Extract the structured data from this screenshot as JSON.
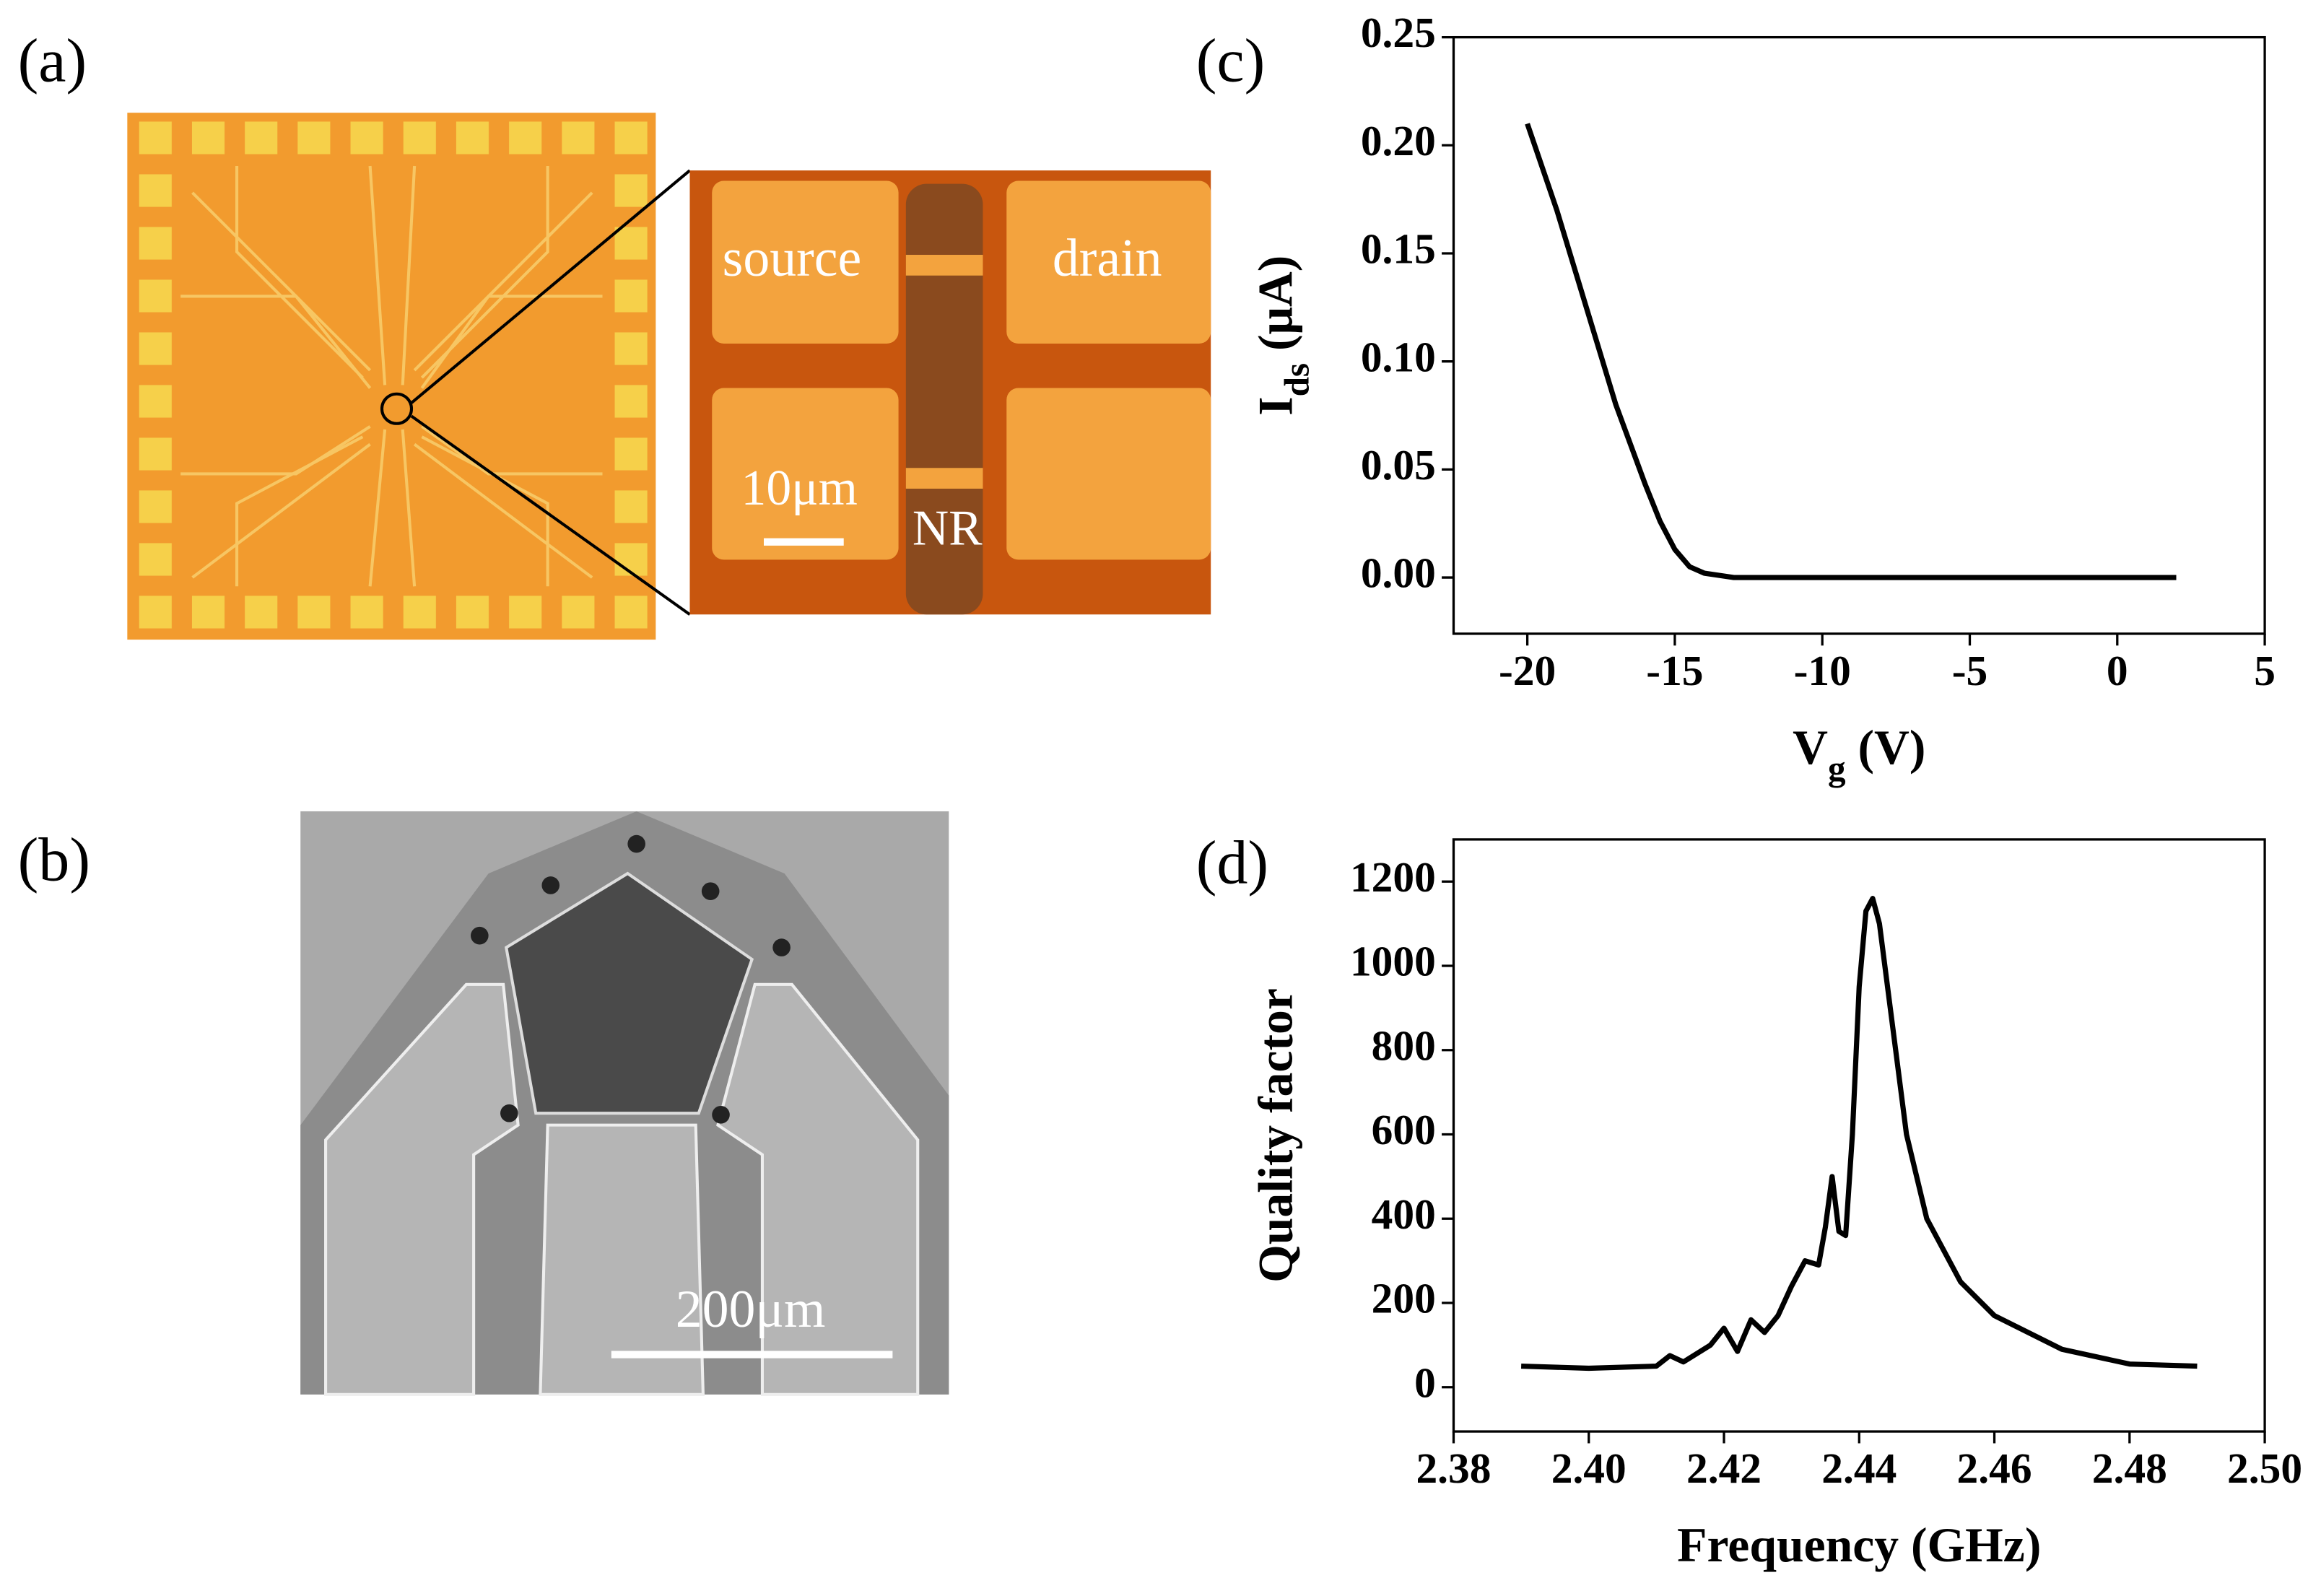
{
  "images": {
    "a": {
      "panel_label": "(a)",
      "source": "source",
      "drain": "drain",
      "scale": "10μm",
      "nr": "NR"
    },
    "b": {
      "panel_label": "(b)",
      "scale": "200μm"
    }
  },
  "chart_data": [
    {
      "type": "line",
      "panel_label": "(c)",
      "xlabel": [
        "V",
        "g",
        " (V)"
      ],
      "ylabel": [
        "I",
        "ds",
        " (μA)"
      ],
      "color": "#000000",
      "x": [
        -20,
        -19,
        -18,
        -17,
        -16,
        -15.5,
        -15,
        -14.5,
        -14,
        -13,
        -10,
        -5,
        0,
        2
      ],
      "values": [
        0.21,
        0.17,
        0.125,
        0.08,
        0.043,
        0.026,
        0.013,
        0.005,
        0.002,
        0,
        0,
        0,
        0,
        0
      ],
      "xlim": [
        -22.5,
        5
      ],
      "ylim": [
        -0.026,
        0.25
      ],
      "xticks": [
        -20,
        -15,
        -10,
        -5,
        0,
        5
      ],
      "yticks": [
        {
          "value": 0,
          "label": "0.00"
        },
        0.05,
        {
          "value": 0.1,
          "label": "0.10"
        },
        0.15,
        {
          "value": 0.2,
          "label": "0.20"
        },
        0.25
      ]
    },
    {
      "type": "line",
      "panel_label": "(d)",
      "xlabel": [
        "Frequency (GHz)"
      ],
      "ylabel": [
        "Quality factor"
      ],
      "color": "#000000",
      "x": [
        2.39,
        2.4,
        2.41,
        2.412,
        2.414,
        2.418,
        2.42,
        2.422,
        2.424,
        2.426,
        2.428,
        2.43,
        2.432,
        2.434,
        2.435,
        2.436,
        2.437,
        2.438,
        2.439,
        2.44,
        2.441,
        2.442,
        2.443,
        2.445,
        2.447,
        2.45,
        2.455,
        2.46,
        2.47,
        2.48,
        2.49
      ],
      "values": [
        50,
        45,
        50,
        75,
        60,
        100,
        140,
        85,
        160,
        130,
        170,
        240,
        300,
        290,
        380,
        500,
        370,
        360,
        600,
        950,
        1130,
        1160,
        1100,
        850,
        600,
        400,
        250,
        170,
        90,
        55,
        50
      ],
      "xlim": [
        2.38,
        2.5
      ],
      "ylim": [
        -105,
        1300
      ],
      "xticks": [
        2.38,
        {
          "value": 2.4,
          "label": "2.40"
        },
        2.42,
        2.44,
        2.46,
        2.48,
        {
          "value": 2.5,
          "label": "2.50"
        }
      ],
      "yticks": [
        0,
        200,
        400,
        600,
        800,
        1000,
        1200
      ]
    }
  ]
}
